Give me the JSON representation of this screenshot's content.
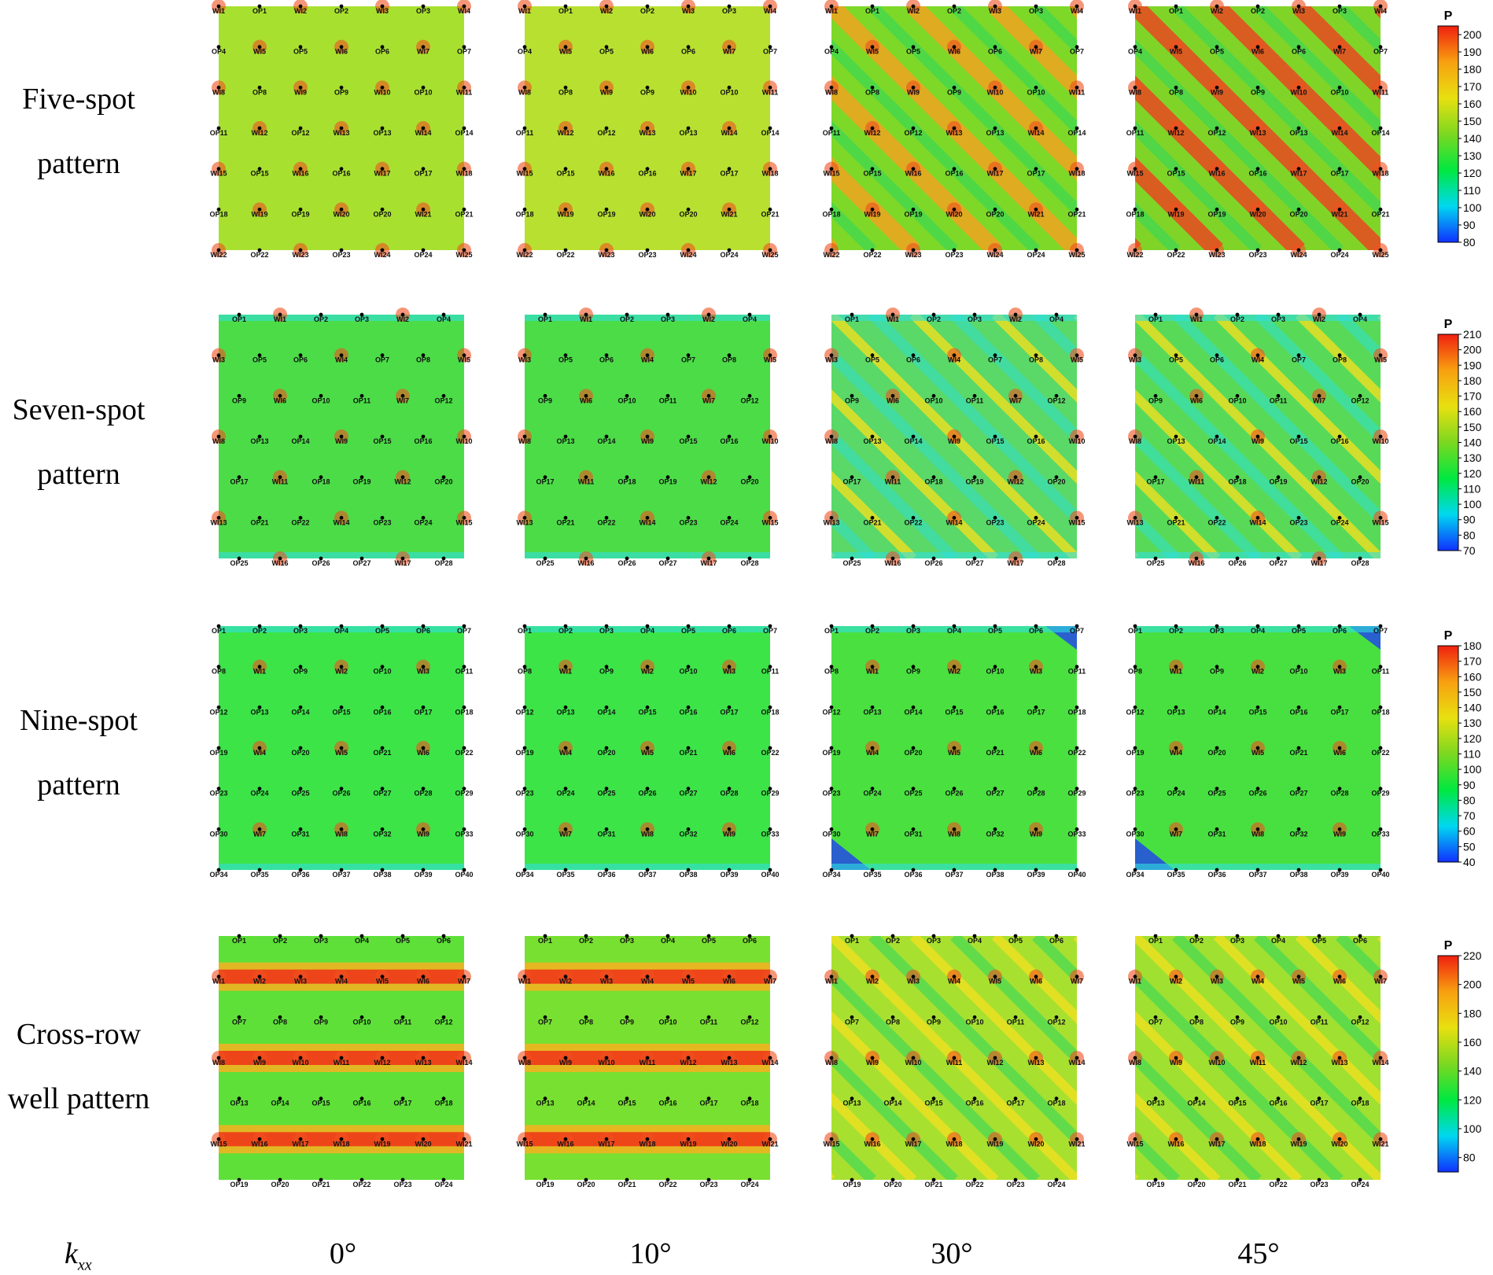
{
  "rows": [
    {
      "label_line1": "Five-spot",
      "label_line2": "pattern",
      "colorbar": {
        "title": "P",
        "min": 80,
        "max": 205,
        "ticks": [
          80,
          90,
          100,
          110,
          120,
          130,
          140,
          150,
          160,
          170,
          180,
          190,
          200
        ]
      },
      "grid": [
        [
          "WI1",
          "OP1",
          "WI2",
          "OP2",
          "WI3",
          "OP3",
          "WI4"
        ],
        [
          "OP4",
          "WI5",
          "OP5",
          "WI6",
          "OP6",
          "WI7",
          "OP7"
        ],
        [
          "WI8",
          "OP8",
          "WI9",
          "OP9",
          "WI10",
          "OP10",
          "WI11"
        ],
        [
          "OP11",
          "WI12",
          "OP12",
          "WI13",
          "OP13",
          "WI14",
          "OP14"
        ],
        [
          "WI15",
          "OP15",
          "WI16",
          "OP16",
          "WI17",
          "OP17",
          "WI18"
        ],
        [
          "OP18",
          "WI19",
          "OP19",
          "WI20",
          "OP20",
          "WI21",
          "OP21"
        ],
        [
          "WI22",
          "OP22",
          "WI23",
          "OP23",
          "WI24",
          "OP24",
          "WI25"
        ]
      ]
    },
    {
      "label_line1": "Seven-spot",
      "label_line2": "pattern",
      "colorbar": {
        "title": "P",
        "min": 70,
        "max": 210,
        "ticks": [
          70,
          80,
          90,
          100,
          110,
          120,
          130,
          140,
          150,
          160,
          170,
          180,
          190,
          200,
          210
        ]
      },
      "grid": [
        [
          "OP1",
          "WI1",
          "OP2",
          "OP3",
          "WI2",
          "OP4"
        ],
        [
          "WI3",
          "OP5",
          "OP6",
          "WI4",
          "OP7",
          "OP8",
          "WI5"
        ],
        [
          "OP9",
          "WI6",
          "OP10",
          "OP11",
          "WI7",
          "OP12"
        ],
        [
          "WI8",
          "OP13",
          "OP14",
          "WI9",
          "OP15",
          "OP16",
          "WI10"
        ],
        [
          "OP17",
          "WI11",
          "OP18",
          "OP19",
          "WI12",
          "OP20"
        ],
        [
          "WI13",
          "OP21",
          "OP22",
          "WI14",
          "OP23",
          "OP24",
          "WI15"
        ],
        [
          "OP25",
          "WI16",
          "OP26",
          "OP27",
          "WI17",
          "OP28"
        ]
      ]
    },
    {
      "label_line1": "Nine-spot",
      "label_line2": "pattern",
      "colorbar": {
        "title": "P",
        "min": 40,
        "max": 180,
        "ticks": [
          40,
          50,
          60,
          70,
          80,
          90,
          100,
          110,
          120,
          130,
          140,
          150,
          160,
          170,
          180
        ]
      },
      "grid": [
        [
          "OP1",
          "OP2",
          "OP3",
          "OP4",
          "OP5",
          "OP6",
          "OP7"
        ],
        [
          "OP8",
          "WI1",
          "OP9",
          "WI2",
          "OP10",
          "WI3",
          "OP11"
        ],
        [
          "OP12",
          "OP13",
          "OP14",
          "OP15",
          "OP16",
          "OP17",
          "OP18"
        ],
        [
          "OP19",
          "WI4",
          "OP20",
          "WI5",
          "OP21",
          "WI6",
          "OP22"
        ],
        [
          "OP23",
          "OP24",
          "OP25",
          "OP26",
          "OP27",
          "OP28",
          "OP29"
        ],
        [
          "OP30",
          "WI7",
          "OP31",
          "WI8",
          "OP32",
          "WI9",
          "OP33"
        ],
        [
          "OP34",
          "OP35",
          "OP36",
          "OP37",
          "OP38",
          "OP39",
          "OP40"
        ]
      ]
    },
    {
      "label_line1": "Cross-row",
      "label_line2": "well pattern",
      "colorbar": {
        "title": "P",
        "min": 70,
        "max": 220,
        "ticks": [
          80,
          100,
          120,
          140,
          160,
          180,
          200,
          220
        ]
      },
      "grid": [
        [
          "OP1",
          "OP2",
          "OP3",
          "OP4",
          "OP5",
          "OP6"
        ],
        [
          "WI1",
          "WI2",
          "WI3",
          "WI4",
          "WI5",
          "WI6",
          "WI7"
        ],
        [
          "OP7",
          "OP8",
          "OP9",
          "OP10",
          "OP11",
          "OP12"
        ],
        [
          "WI8",
          "WI9",
          "WI10",
          "WI11",
          "WI12",
          "WI13",
          "WI14"
        ],
        [
          "OP13",
          "OP14",
          "OP15",
          "OP16",
          "OP17",
          "OP18"
        ],
        [
          "WI15",
          "WI16",
          "WI17",
          "WI18",
          "WI19",
          "WI20",
          "WI21"
        ],
        [
          "OP19",
          "OP20",
          "OP21",
          "OP22",
          "OP23",
          "OP24"
        ]
      ]
    }
  ],
  "columns": [
    "0°",
    "10°",
    "30°",
    "45°"
  ],
  "axis_label": "k",
  "axis_label_sub": "xx",
  "colors": {
    "dot": "#000000",
    "colormap": [
      "#1030ff",
      "#00d8f0",
      "#00e840",
      "#7cd820",
      "#e8e010",
      "#f8a010",
      "#f02010"
    ]
  }
}
